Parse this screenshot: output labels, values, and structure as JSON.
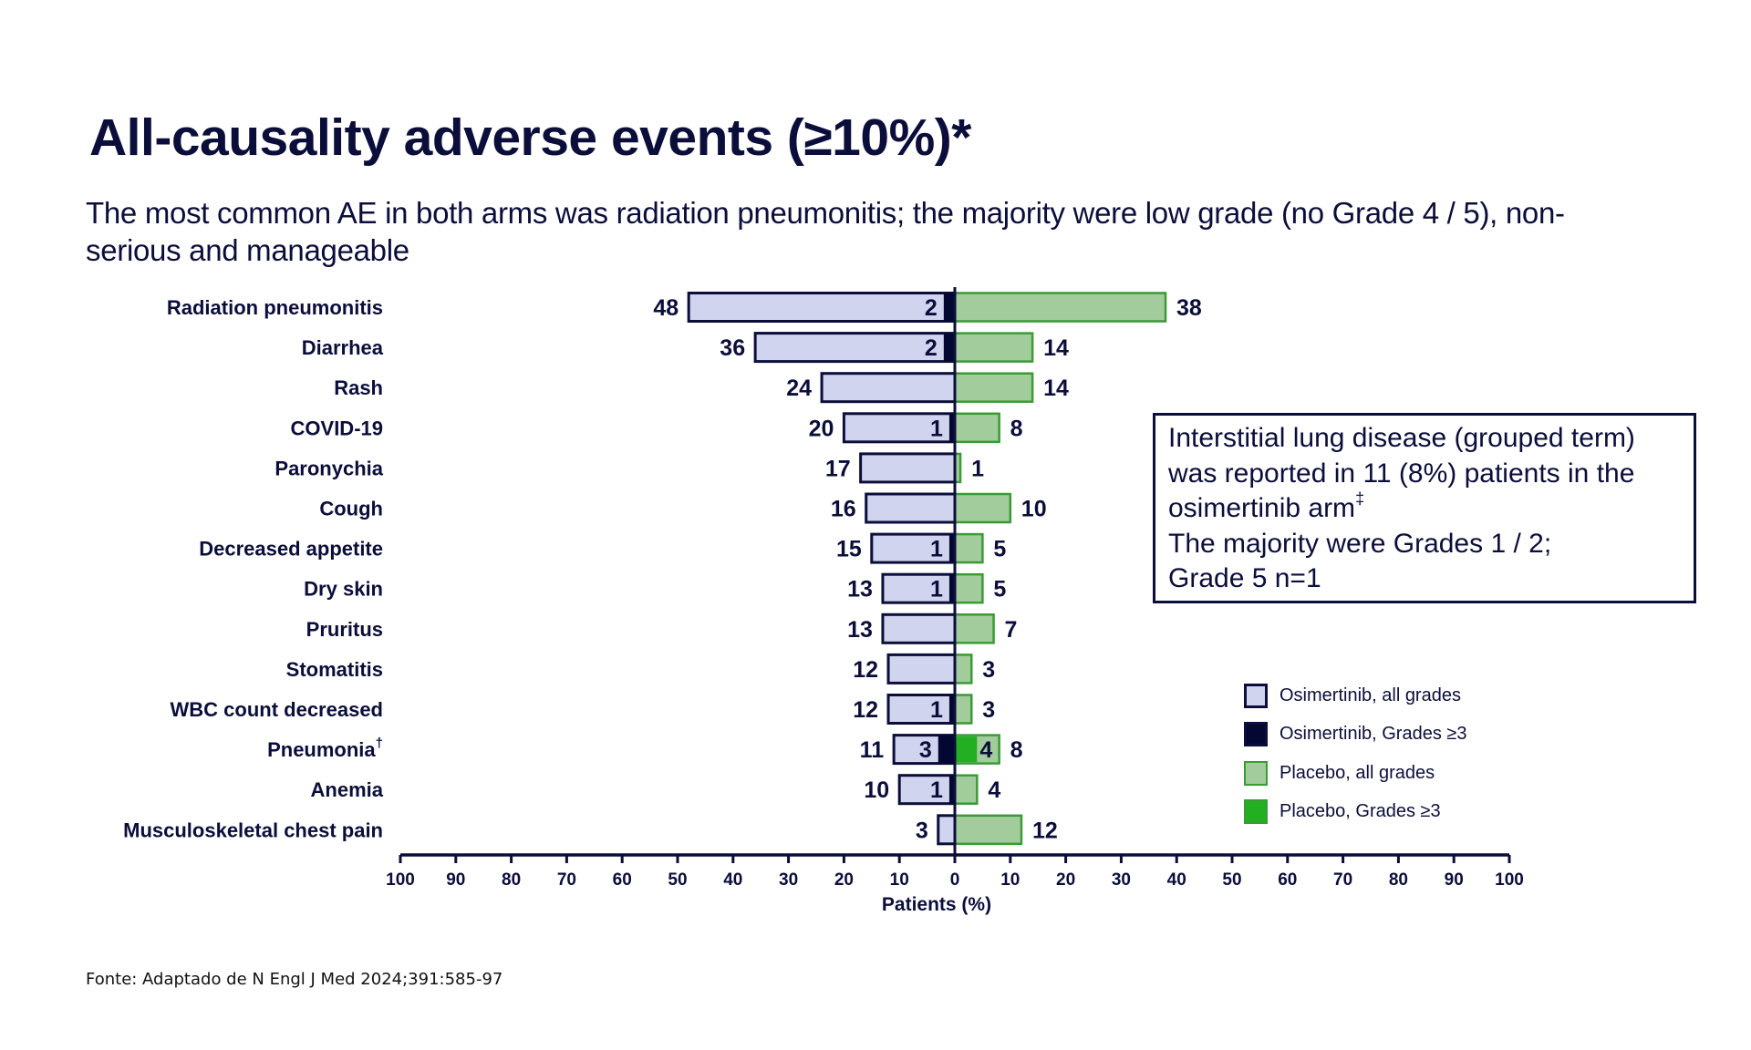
{
  "header": {
    "title": "All-causality adverse events (≥10%)*",
    "subtitle": "The most common AE in both arms was radiation pneumonitis; the majority were low grade (no Grade 4 / 5), non-serious and manageable"
  },
  "callout": {
    "lines": [
      "Interstitial lung disease (grouped term)",
      "was reported in 11 (8%) patients in the",
      "osimertinib arm",
      "The majority were Grades 1 / 2;",
      "Grade 5 n=1"
    ],
    "footnote_mark": "‡"
  },
  "colors": {
    "text": "#0b0e3a",
    "osimertinib_all": "#d0d4ee",
    "osimertinib_g3": "#050733",
    "placebo_all": "#a3cc9c",
    "placebo_g3": "#22b022",
    "placebo_border": "#3a9a35"
  },
  "legend": [
    {
      "label": "Osimertinib, all grades",
      "key": "osimertinib_all"
    },
    {
      "label": "Osimertinib, Grades ≥3",
      "key": "osimertinib_g3"
    },
    {
      "label": "Placebo, all grades",
      "key": "placebo_all"
    },
    {
      "label": "Placebo, Grades ≥3",
      "key": "placebo_g3"
    }
  ],
  "footer": {
    "source": "Fonte: Adaptado de N Engl J Med 2024;391:585-97"
  },
  "chart_data": {
    "type": "bar",
    "orientation": "horizontal-diverging",
    "title": "All-causality adverse events (≥10%)*",
    "xlabel": "Patients (%)",
    "ylabel": "",
    "xlim": [
      -100,
      100
    ],
    "xticks": [
      100,
      90,
      80,
      70,
      60,
      50,
      40,
      30,
      20,
      10,
      0,
      10,
      20,
      30,
      40,
      50,
      60,
      70,
      80,
      90,
      100
    ],
    "grid": false,
    "legend_position": "bottom-right",
    "categories": [
      {
        "label": "Radiation pneumonitis",
        "sup": ""
      },
      {
        "label": "Diarrhea",
        "sup": ""
      },
      {
        "label": "Rash",
        "sup": ""
      },
      {
        "label": "COVID-19",
        "sup": ""
      },
      {
        "label": "Paronychia",
        "sup": ""
      },
      {
        "label": "Cough",
        "sup": ""
      },
      {
        "label": "Decreased appetite",
        "sup": ""
      },
      {
        "label": "Dry skin",
        "sup": ""
      },
      {
        "label": "Pruritus",
        "sup": ""
      },
      {
        "label": "Stomatitis",
        "sup": ""
      },
      {
        "label": "WBC count decreased",
        "sup": ""
      },
      {
        "label": "Pneumonia",
        "sup": "†"
      },
      {
        "label": "Anemia",
        "sup": ""
      },
      {
        "label": "Musculoskeletal chest pain",
        "sup": ""
      }
    ],
    "series": [
      {
        "name": "Osimertinib, all grades",
        "side": "left",
        "values": [
          48,
          36,
          24,
          20,
          17,
          16,
          15,
          13,
          13,
          12,
          12,
          11,
          10,
          3
        ]
      },
      {
        "name": "Osimertinib, Grades ≥3",
        "side": "left",
        "values": [
          2,
          2,
          null,
          1,
          null,
          null,
          1,
          1,
          null,
          null,
          1,
          3,
          1,
          null
        ]
      },
      {
        "name": "Placebo, all grades",
        "side": "right",
        "values": [
          38,
          14,
          14,
          8,
          1,
          10,
          5,
          5,
          7,
          3,
          3,
          8,
          4,
          12
        ]
      },
      {
        "name": "Placebo, Grades ≥3",
        "side": "right",
        "values": [
          null,
          null,
          null,
          null,
          null,
          null,
          null,
          null,
          null,
          null,
          null,
          4,
          null,
          null
        ]
      }
    ]
  }
}
